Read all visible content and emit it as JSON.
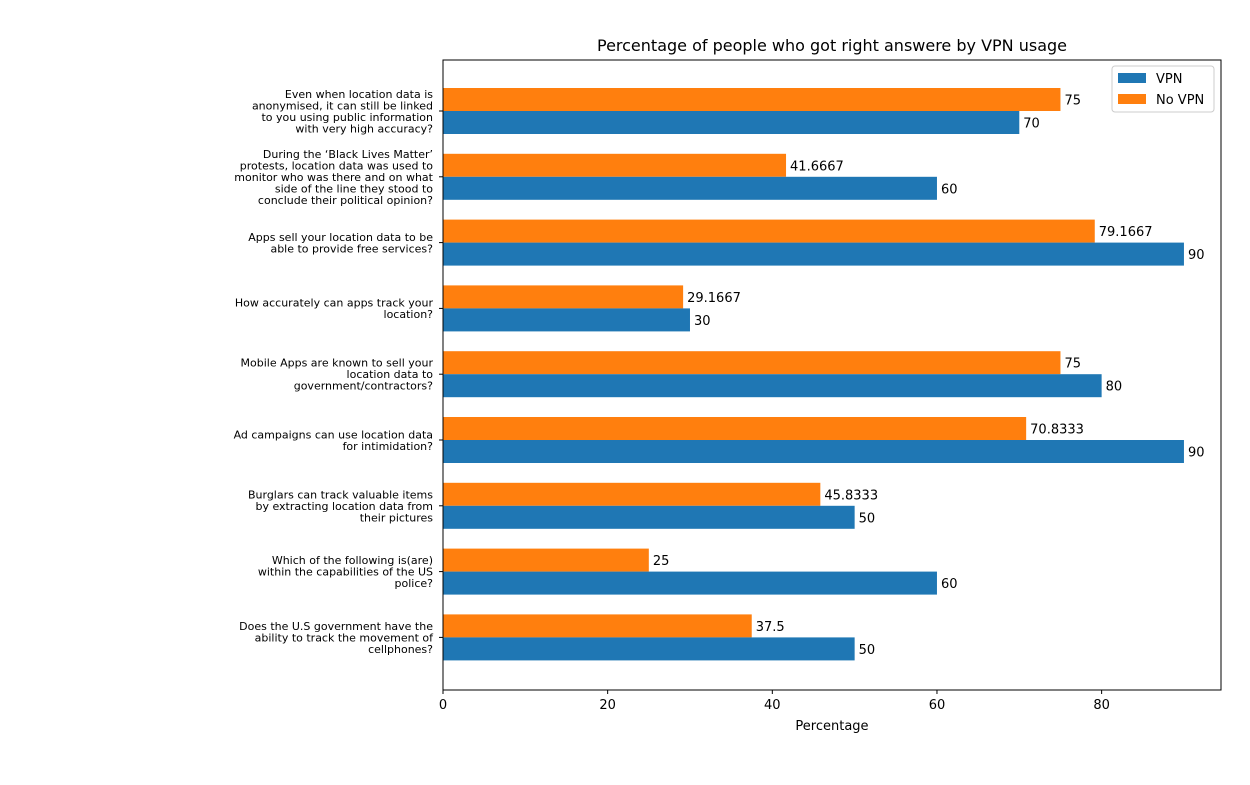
{
  "chart_data": {
    "type": "bar",
    "orientation": "horizontal",
    "title": "Percentage of people who got right answere by VPN usage",
    "xlabel": "Percentage",
    "ylabel": "",
    "xlim": [
      0,
      94.5
    ],
    "xticks": [
      0,
      20,
      40,
      60,
      80
    ],
    "grid": false,
    "legend": "top-right",
    "categories": [
      [
        "Even when location data is",
        "anonymised, it can still be linked",
        "to you using public information",
        "with very high accuracy?"
      ],
      [
        "During the ‘Black Lives Matter’",
        "protests, location data was used to",
        "monitor who was there and on what",
        "side of the line they stood to",
        "conclude their political opinion?"
      ],
      [
        "Apps sell your location data to be",
        "able to provide free services?"
      ],
      [
        "How accurately can apps track your",
        "location?"
      ],
      [
        "Mobile Apps are known to sell your",
        "location data to",
        "government/contractors?"
      ],
      [
        "Ad campaigns can use location data",
        "for intimidation?"
      ],
      [
        "Burglars can track valuable items",
        "by extracting location data from",
        "their pictures"
      ],
      [
        "Which of the following is(are)",
        "within the capabilities of the US",
        "police?"
      ],
      [
        "Does the U.S government have the",
        "ability to track the movement of",
        "cellphones?"
      ]
    ],
    "series": [
      {
        "name": "VPN",
        "color": "#1f77b4",
        "values": [
          70,
          60,
          90,
          30,
          80,
          90,
          50,
          60,
          50
        ],
        "labels": [
          "70",
          "60",
          "90",
          "30",
          "80",
          "90",
          "50",
          "60",
          "50"
        ]
      },
      {
        "name": "No VPN",
        "color": "#ff7f0e",
        "values": [
          75,
          41.6667,
          79.1667,
          29.1667,
          75,
          70.8333,
          45.8333,
          25,
          37.5
        ],
        "labels": [
          "75",
          "41.6667",
          "79.1667",
          "29.1667",
          "75",
          "70.8333",
          "45.8333",
          "25",
          "37.5"
        ]
      }
    ]
  }
}
